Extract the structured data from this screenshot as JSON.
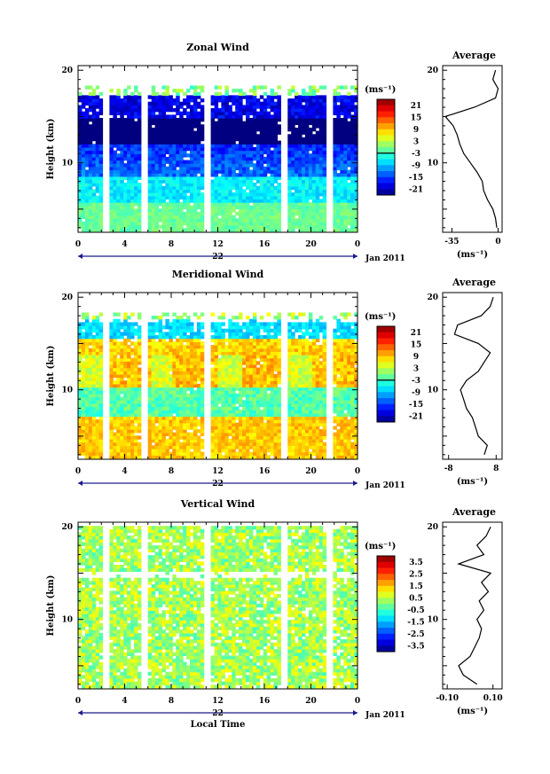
{
  "chart_data": [
    {
      "type": "heatmap",
      "title": "Zonal Wind",
      "ylabel": "Height (km)",
      "y_ticks": [
        "10",
        "20"
      ],
      "ylim": [
        2.5,
        20.5
      ],
      "x_ticks": [
        "0",
        "4",
        "8",
        "12",
        "16",
        "20",
        "0"
      ],
      "xlim": [
        0,
        24
      ],
      "date_label": "22",
      "month_label": "Jan 2011",
      "colorbar": {
        "unit": "(ms⁻¹)",
        "range": [
          -24,
          24
        ],
        "ticks": [
          "21",
          "15",
          "9",
          "3",
          "-3",
          "-9",
          "-15",
          "-21"
        ]
      },
      "profile": {
        "title": "Average",
        "xlabel": "(ms⁻¹)",
        "x_ticks": [
          "-35",
          "0"
        ],
        "xlim": [
          -42,
          3
        ],
        "heights": [
          3,
          4,
          5,
          6,
          7,
          8,
          9,
          10,
          11,
          12,
          13,
          14,
          15,
          16,
          17,
          18,
          19,
          20
        ],
        "values": [
          -1,
          -2,
          -4,
          -8,
          -11,
          -12,
          -16,
          -21,
          -26,
          -29,
          -31,
          -34,
          -40,
          -18,
          -2,
          0,
          -4,
          -2
        ]
      }
    },
    {
      "type": "heatmap",
      "title": "Meridional Wind",
      "ylabel": "Height (km)",
      "y_ticks": [
        "10",
        "20"
      ],
      "ylim": [
        2.5,
        20.5
      ],
      "x_ticks": [
        "0",
        "4",
        "8",
        "12",
        "16",
        "20",
        "0"
      ],
      "xlim": [
        0,
        24
      ],
      "date_label": "22",
      "month_label": "Jan 2011",
      "colorbar": {
        "unit": "(ms⁻¹)",
        "range": [
          -24,
          24
        ],
        "ticks": [
          "21",
          "15",
          "9",
          "3",
          "-3",
          "-9",
          "-15",
          "-21"
        ]
      },
      "profile": {
        "title": "Average",
        "xlabel": "(ms⁻¹)",
        "x_ticks": [
          "-8",
          "8"
        ],
        "xlim": [
          -10,
          10
        ],
        "heights": [
          3,
          4,
          5,
          6,
          7,
          8,
          9,
          10,
          11,
          12,
          13,
          14,
          15,
          16,
          17,
          18,
          19,
          20
        ],
        "values": [
          4,
          5,
          2,
          1,
          0,
          -2,
          -3,
          -4,
          -2,
          2,
          4,
          6,
          2,
          -6,
          -5,
          3,
          6,
          7
        ]
      }
    },
    {
      "type": "heatmap",
      "title": "Vertical Wind",
      "ylabel": "Height (km)",
      "y_ticks": [
        "10",
        "20"
      ],
      "ylim": [
        2.5,
        20.5
      ],
      "x_ticks": [
        "0",
        "4",
        "8",
        "12",
        "16",
        "20",
        "0"
      ],
      "xlim": [
        0,
        24
      ],
      "date_label": "22",
      "month_label": "Jan 2011",
      "xlabel": "Local Time",
      "colorbar": {
        "unit": "(ms⁻¹)",
        "range": [
          -4,
          4
        ],
        "ticks": [
          "3.5",
          "2.5",
          "1.5",
          "0.5",
          "-0.5",
          "-1.5",
          "-2.5",
          "-3.5"
        ]
      },
      "profile": {
        "title": "Average",
        "xlabel": "(ms⁻¹)",
        "x_ticks": [
          "-0.10",
          "0.10"
        ],
        "xlim": [
          -0.12,
          0.14
        ],
        "heights": [
          3,
          4,
          5,
          6,
          7,
          8,
          9,
          10,
          11,
          12,
          13,
          14,
          15,
          16,
          17,
          18,
          19,
          20
        ],
        "values": [
          0.03,
          -0.03,
          -0.05,
          0.0,
          0.02,
          0.04,
          0.05,
          0.03,
          0.06,
          0.04,
          0.08,
          0.05,
          0.09,
          -0.05,
          0.06,
          0.03,
          0.07,
          0.09
        ]
      }
    }
  ]
}
